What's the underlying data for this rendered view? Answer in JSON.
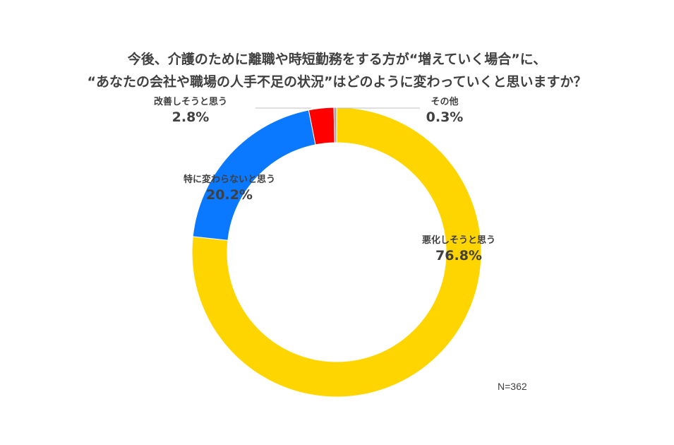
{
  "title": {
    "line1": "今後、介護のために離職や時短勤務をする方が“増えていく場合”に、",
    "line2": "“あなたの会社や職場の人手不足の状況”はどのように変わっていくと思いますか？"
  },
  "note": "N=362",
  "chart_data": {
    "type": "pie",
    "subtype": "donut",
    "title": "今後、介護のために離職や時短勤務をする方が“増えていく場合”に、“あなたの会社や職場の人手不足の状況”はどのように変わっていくと思いますか？",
    "unit": "%",
    "slices": [
      {
        "label": "悪化しそうと思う",
        "value": 76.8,
        "display": "76.8%",
        "color": "#FFD500"
      },
      {
        "label": "特に変わらないと思う",
        "value": 20.2,
        "display": "20.2%",
        "color": "#0A78FF"
      },
      {
        "label": "改善しそうと思う",
        "value": 2.8,
        "display": "2.8%",
        "color": "#FF0000"
      },
      {
        "label": "その他",
        "value": 0.3,
        "display": "0.3%",
        "color": "#A6A6A6"
      }
    ]
  }
}
